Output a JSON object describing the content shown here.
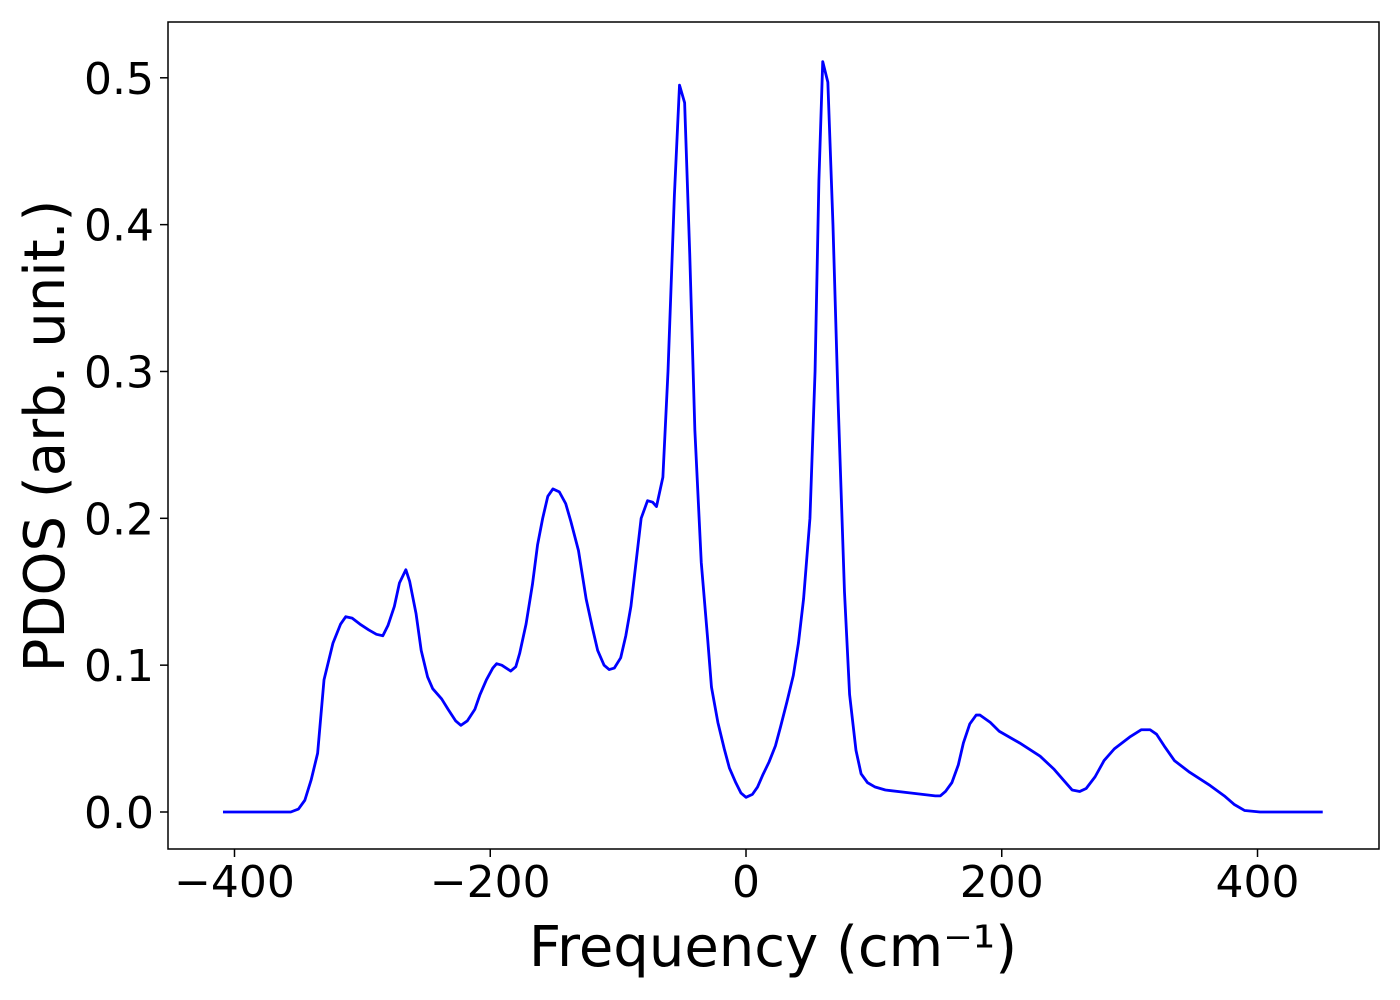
{
  "chart_data": {
    "type": "line",
    "xlabel": "Frequency (cm⁻¹)",
    "ylabel": "PDOS (arb. unit.)",
    "x": [
      -409,
      -356,
      -350,
      -345,
      -340,
      -335,
      -330,
      -323,
      -317,
      -313,
      -308,
      -302,
      -295,
      -289,
      -284,
      -280,
      -275,
      -271,
      -266,
      -263,
      -258,
      -254,
      -249,
      -245,
      -238,
      -233,
      -227,
      -223,
      -218,
      -212,
      -208,
      -203,
      -198,
      -195,
      -191,
      -184,
      -180,
      -177,
      -172,
      -167,
      -163,
      -159,
      -155,
      -151,
      -146,
      -141,
      -137,
      -131,
      -125,
      -120,
      -116,
      -111,
      -107,
      -103,
      -98,
      -94,
      -90,
      -86,
      -82,
      -77,
      -73,
      -70,
      -65,
      -61,
      -56,
      -52,
      -48,
      -44,
      -40,
      -35,
      -30,
      -27,
      -22,
      -17,
      -13,
      -8,
      -4,
      0,
      5,
      9,
      13,
      18,
      23,
      27,
      32,
      37,
      41,
      45,
      50,
      54,
      57,
      60,
      64,
      68,
      72,
      77,
      81,
      86,
      90,
      95,
      101,
      109,
      128,
      148,
      152,
      156,
      161,
      166,
      170,
      175,
      180,
      183,
      191,
      198,
      214,
      230,
      241,
      249,
      255,
      261,
      266,
      273,
      280,
      288,
      300,
      309,
      316,
      321,
      327,
      335,
      347,
      363,
      374,
      382,
      390,
      402,
      451
    ],
    "series": [
      {
        "name": "PDOS",
        "color": "#0000ff",
        "values": [
          0,
          0,
          0.002,
          0.008,
          0.022,
          0.04,
          0.09,
          0.115,
          0.128,
          0.133,
          0.132,
          0.128,
          0.124,
          0.121,
          0.12,
          0.127,
          0.14,
          0.156,
          0.165,
          0.157,
          0.135,
          0.11,
          0.092,
          0.084,
          0.077,
          0.07,
          0.062,
          0.059,
          0.062,
          0.07,
          0.08,
          0.09,
          0.098,
          0.101,
          0.1,
          0.096,
          0.099,
          0.108,
          0.128,
          0.155,
          0.182,
          0.2,
          0.215,
          0.22,
          0.218,
          0.21,
          0.198,
          0.178,
          0.145,
          0.125,
          0.11,
          0.1,
          0.097,
          0.098,
          0.105,
          0.12,
          0.14,
          0.17,
          0.2,
          0.212,
          0.211,
          0.208,
          0.228,
          0.3,
          0.42,
          0.495,
          0.483,
          0.38,
          0.26,
          0.17,
          0.118,
          0.085,
          0.061,
          0.043,
          0.03,
          0.02,
          0.013,
          0.01,
          0.012,
          0.017,
          0.025,
          0.034,
          0.045,
          0.058,
          0.075,
          0.093,
          0.115,
          0.145,
          0.2,
          0.3,
          0.43,
          0.511,
          0.497,
          0.4,
          0.28,
          0.15,
          0.08,
          0.042,
          0.026,
          0.02,
          0.017,
          0.015,
          0.013,
          0.011,
          0.011,
          0.014,
          0.02,
          0.032,
          0.047,
          0.06,
          0.066,
          0.066,
          0.061,
          0.055,
          0.047,
          0.038,
          0.029,
          0.021,
          0.015,
          0.014,
          0.016,
          0.024,
          0.035,
          0.043,
          0.051,
          0.056,
          0.056,
          0.053,
          0.045,
          0.035,
          0.027,
          0.018,
          0.011,
          0.005,
          0.001,
          0,
          0
        ]
      }
    ],
    "xlim": [
      -452,
      495
    ],
    "ylim": [
      -0.0252,
      0.538
    ],
    "xticks": [
      {
        "value": -400,
        "label": "−400"
      },
      {
        "value": -200,
        "label": "−200"
      },
      0,
      200,
      400
    ],
    "yticks": [
      {
        "value": 0,
        "label": "0.0"
      },
      0.1,
      0.2,
      0.3,
      0.4,
      0.5
    ],
    "grid": false
  }
}
